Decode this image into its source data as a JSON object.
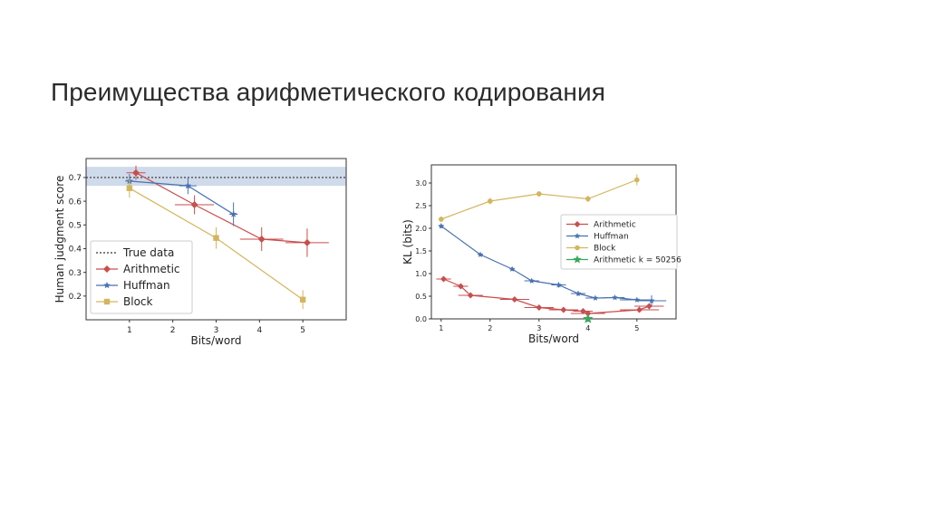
{
  "slide": {
    "title": "Преимущества арифметического кодирования"
  },
  "chart_data": [
    {
      "type": "line",
      "title": "",
      "xlabel": "Bits/word",
      "ylabel": "Human judgment score",
      "xlim": [
        0,
        6
      ],
      "ylim": [
        0.1,
        0.78
      ],
      "xticks": [
        1,
        2,
        3,
        4,
        5
      ],
      "yticks": [
        0.2,
        0.3,
        0.4,
        0.5,
        0.6,
        0.7
      ],
      "grid": false,
      "legend_position": "lower-left",
      "reference": {
        "name": "True data",
        "value": 0.7,
        "band": [
          0.665,
          0.745
        ],
        "color": "#333333",
        "band_color": "#c7d3e6"
      },
      "series": [
        {
          "name": "Arithmetic",
          "color": "#c94e4e",
          "marker": "diamond",
          "points": [
            {
              "x": 1.15,
              "y": 0.72,
              "xerr": 0.22,
              "yerr": 0.03
            },
            {
              "x": 2.5,
              "y": 0.585,
              "xerr": 0.45,
              "yerr": 0.04
            },
            {
              "x": 4.05,
              "y": 0.44,
              "xerr": 0.5,
              "yerr": 0.05
            },
            {
              "x": 5.1,
              "y": 0.425,
              "xerr": 0.5,
              "yerr": 0.06
            }
          ]
        },
        {
          "name": "Huffman",
          "color": "#4a72b0",
          "marker": "star",
          "points": [
            {
              "x": 1.0,
              "y": 0.685,
              "xerr": 0.1,
              "yerr": 0.03
            },
            {
              "x": 2.35,
              "y": 0.665,
              "xerr": 0.2,
              "yerr": 0.035
            },
            {
              "x": 3.4,
              "y": 0.545,
              "xerr": 0.1,
              "yerr": 0.05
            }
          ]
        },
        {
          "name": "Block",
          "color": "#d4b55e",
          "marker": "square",
          "points": [
            {
              "x": 1.0,
              "y": 0.655,
              "xerr": 0.05,
              "yerr": 0.04
            },
            {
              "x": 3.0,
              "y": 0.445,
              "xerr": 0.05,
              "yerr": 0.045
            },
            {
              "x": 5.0,
              "y": 0.185,
              "xerr": 0.05,
              "yerr": 0.04
            }
          ]
        }
      ]
    },
    {
      "type": "line",
      "title": "",
      "xlabel": "Bits/word",
      "ylabel": "KL (bits)",
      "xlim": [
        0.8,
        5.8
      ],
      "ylim": [
        0,
        3.4
      ],
      "xticks": [
        1,
        2,
        3,
        4,
        5
      ],
      "yticks": [
        0.0,
        0.5,
        1.0,
        1.5,
        2.0,
        2.5,
        3.0
      ],
      "ytick_labels": [
        "0.0",
        "0.5",
        "1.0",
        "1.5",
        "2.0",
        "2.5",
        "3.0"
      ],
      "grid": false,
      "legend_position": "center-right",
      "series": [
        {
          "name": "Arithmetic",
          "color": "#c94e4e",
          "marker": "diamond",
          "points": [
            {
              "x": 1.05,
              "y": 0.88,
              "xerr": 0.15,
              "yerr": 0.05
            },
            {
              "x": 1.4,
              "y": 0.72,
              "xerr": 0.15,
              "yerr": 0.04
            },
            {
              "x": 1.6,
              "y": 0.52,
              "xerr": 0.25,
              "yerr": 0.03
            },
            {
              "x": 2.5,
              "y": 0.43,
              "xerr": 0.3,
              "yerr": 0.03
            },
            {
              "x": 3.0,
              "y": 0.25,
              "xerr": 0.3,
              "yerr": 0.03
            },
            {
              "x": 3.5,
              "y": 0.2,
              "xerr": 0.3,
              "yerr": 0.03
            },
            {
              "x": 3.9,
              "y": 0.17,
              "xerr": 0.2,
              "yerr": 0.06
            },
            {
              "x": 4.0,
              "y": 0.12,
              "xerr": 0.35,
              "yerr": 0.03
            },
            {
              "x": 5.05,
              "y": 0.2,
              "xerr": 0.4,
              "yerr": 0.03
            },
            {
              "x": 5.25,
              "y": 0.28,
              "xerr": 0.3,
              "yerr": 0.04
            }
          ]
        },
        {
          "name": "Huffman",
          "color": "#4a72b0",
          "marker": "star",
          "points": [
            {
              "x": 1.0,
              "y": 2.05,
              "xerr": 0.05,
              "yerr": 0.05
            },
            {
              "x": 1.8,
              "y": 1.42,
              "xerr": 0.05,
              "yerr": 0.04
            },
            {
              "x": 2.45,
              "y": 1.1,
              "xerr": 0.05,
              "yerr": 0.04
            },
            {
              "x": 2.85,
              "y": 0.84,
              "xerr": 0.15,
              "yerr": 0.04
            },
            {
              "x": 3.4,
              "y": 0.75,
              "xerr": 0.15,
              "yerr": 0.06
            },
            {
              "x": 3.8,
              "y": 0.56,
              "xerr": 0.15,
              "yerr": 0.05
            },
            {
              "x": 4.15,
              "y": 0.46,
              "xerr": 0.2,
              "yerr": 0.03
            },
            {
              "x": 4.55,
              "y": 0.47,
              "xerr": 0.2,
              "yerr": 0.03
            },
            {
              "x": 5.0,
              "y": 0.42,
              "xerr": 0.35,
              "yerr": 0.03
            },
            {
              "x": 5.3,
              "y": 0.4,
              "xerr": 0.3,
              "yerr": 0.12
            }
          ]
        },
        {
          "name": "Block",
          "color": "#d4b55e",
          "marker": "circle",
          "points": [
            {
              "x": 1.0,
              "y": 2.2,
              "xerr": 0.03,
              "yerr": 0.06
            },
            {
              "x": 2.0,
              "y": 2.6,
              "xerr": 0.03,
              "yerr": 0.07
            },
            {
              "x": 3.0,
              "y": 2.76,
              "xerr": 0.03,
              "yerr": 0.06
            },
            {
              "x": 4.0,
              "y": 2.65,
              "xerr": 0.03,
              "yerr": 0.07
            },
            {
              "x": 5.0,
              "y": 3.07,
              "xerr": 0.03,
              "yerr": 0.12
            }
          ]
        },
        {
          "name": "Arithmetic k = 50256",
          "color": "#3aa85c",
          "marker": "bigstar",
          "points": [
            {
              "x": 4.0,
              "y": 0.0,
              "xerr": 0,
              "yerr": 0
            }
          ]
        }
      ]
    }
  ]
}
